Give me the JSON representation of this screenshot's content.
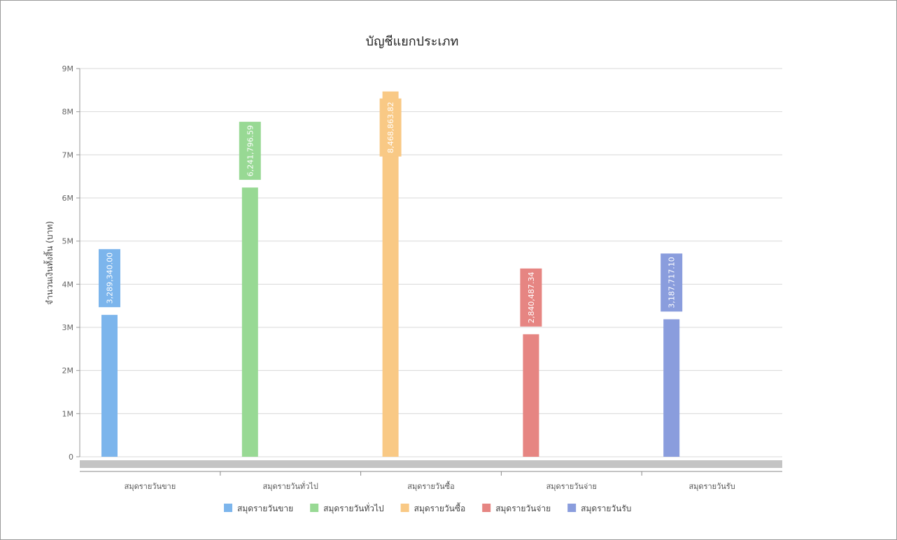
{
  "chart_data": {
    "type": "bar",
    "title": "บัญชีแยกประเภท",
    "xlabel": "",
    "ylabel": "จำนวนเงินทั้งสิ้น (บาท)",
    "ylim": [
      0,
      9000000
    ],
    "yticks": [
      {
        "value": 0,
        "label": "0"
      },
      {
        "value": 1000000,
        "label": "1M"
      },
      {
        "value": 2000000,
        "label": "2M"
      },
      {
        "value": 3000000,
        "label": "3M"
      },
      {
        "value": 4000000,
        "label": "4M"
      },
      {
        "value": 5000000,
        "label": "5M"
      },
      {
        "value": 6000000,
        "label": "6M"
      },
      {
        "value": 7000000,
        "label": "7M"
      },
      {
        "value": 8000000,
        "label": "8M"
      },
      {
        "value": 9000000,
        "label": "9M"
      }
    ],
    "grid": true,
    "legend_position": "bottom",
    "categories": [
      "สมุดรายวันขาย",
      "สมุดรายวันทั่วไป",
      "สมุดรายวันซื้อ",
      "สมุดรายวันจ่าย",
      "สมุดรายวันรับ"
    ],
    "series": [
      {
        "name": "สมุดรายวันขาย",
        "color": "#7cb5ec",
        "values": [
          3289340.0,
          null,
          null,
          null,
          null
        ],
        "labels": [
          "3,289,340.00"
        ]
      },
      {
        "name": "สมุดรายวันทั่วไป",
        "color": "#98d994",
        "values": [
          null,
          6241796.59,
          null,
          null,
          null
        ],
        "labels": [
          "6,241,796.59"
        ]
      },
      {
        "name": "สมุดรายวันซื้อ",
        "color": "#f9c985",
        "values": [
          null,
          null,
          8468863.82,
          null,
          null
        ],
        "labels": [
          "8,468,863.82"
        ]
      },
      {
        "name": "สมุดรายวันจ่าย",
        "color": "#e68582",
        "values": [
          null,
          null,
          null,
          2840487.34,
          null
        ],
        "labels": [
          "2,840,487.34"
        ]
      },
      {
        "name": "สมุดรายวันรับ",
        "color": "#8a9ddd",
        "values": [
          null,
          null,
          null,
          null,
          3187717.1
        ],
        "labels": [
          "3,187,717.10"
        ]
      }
    ]
  }
}
